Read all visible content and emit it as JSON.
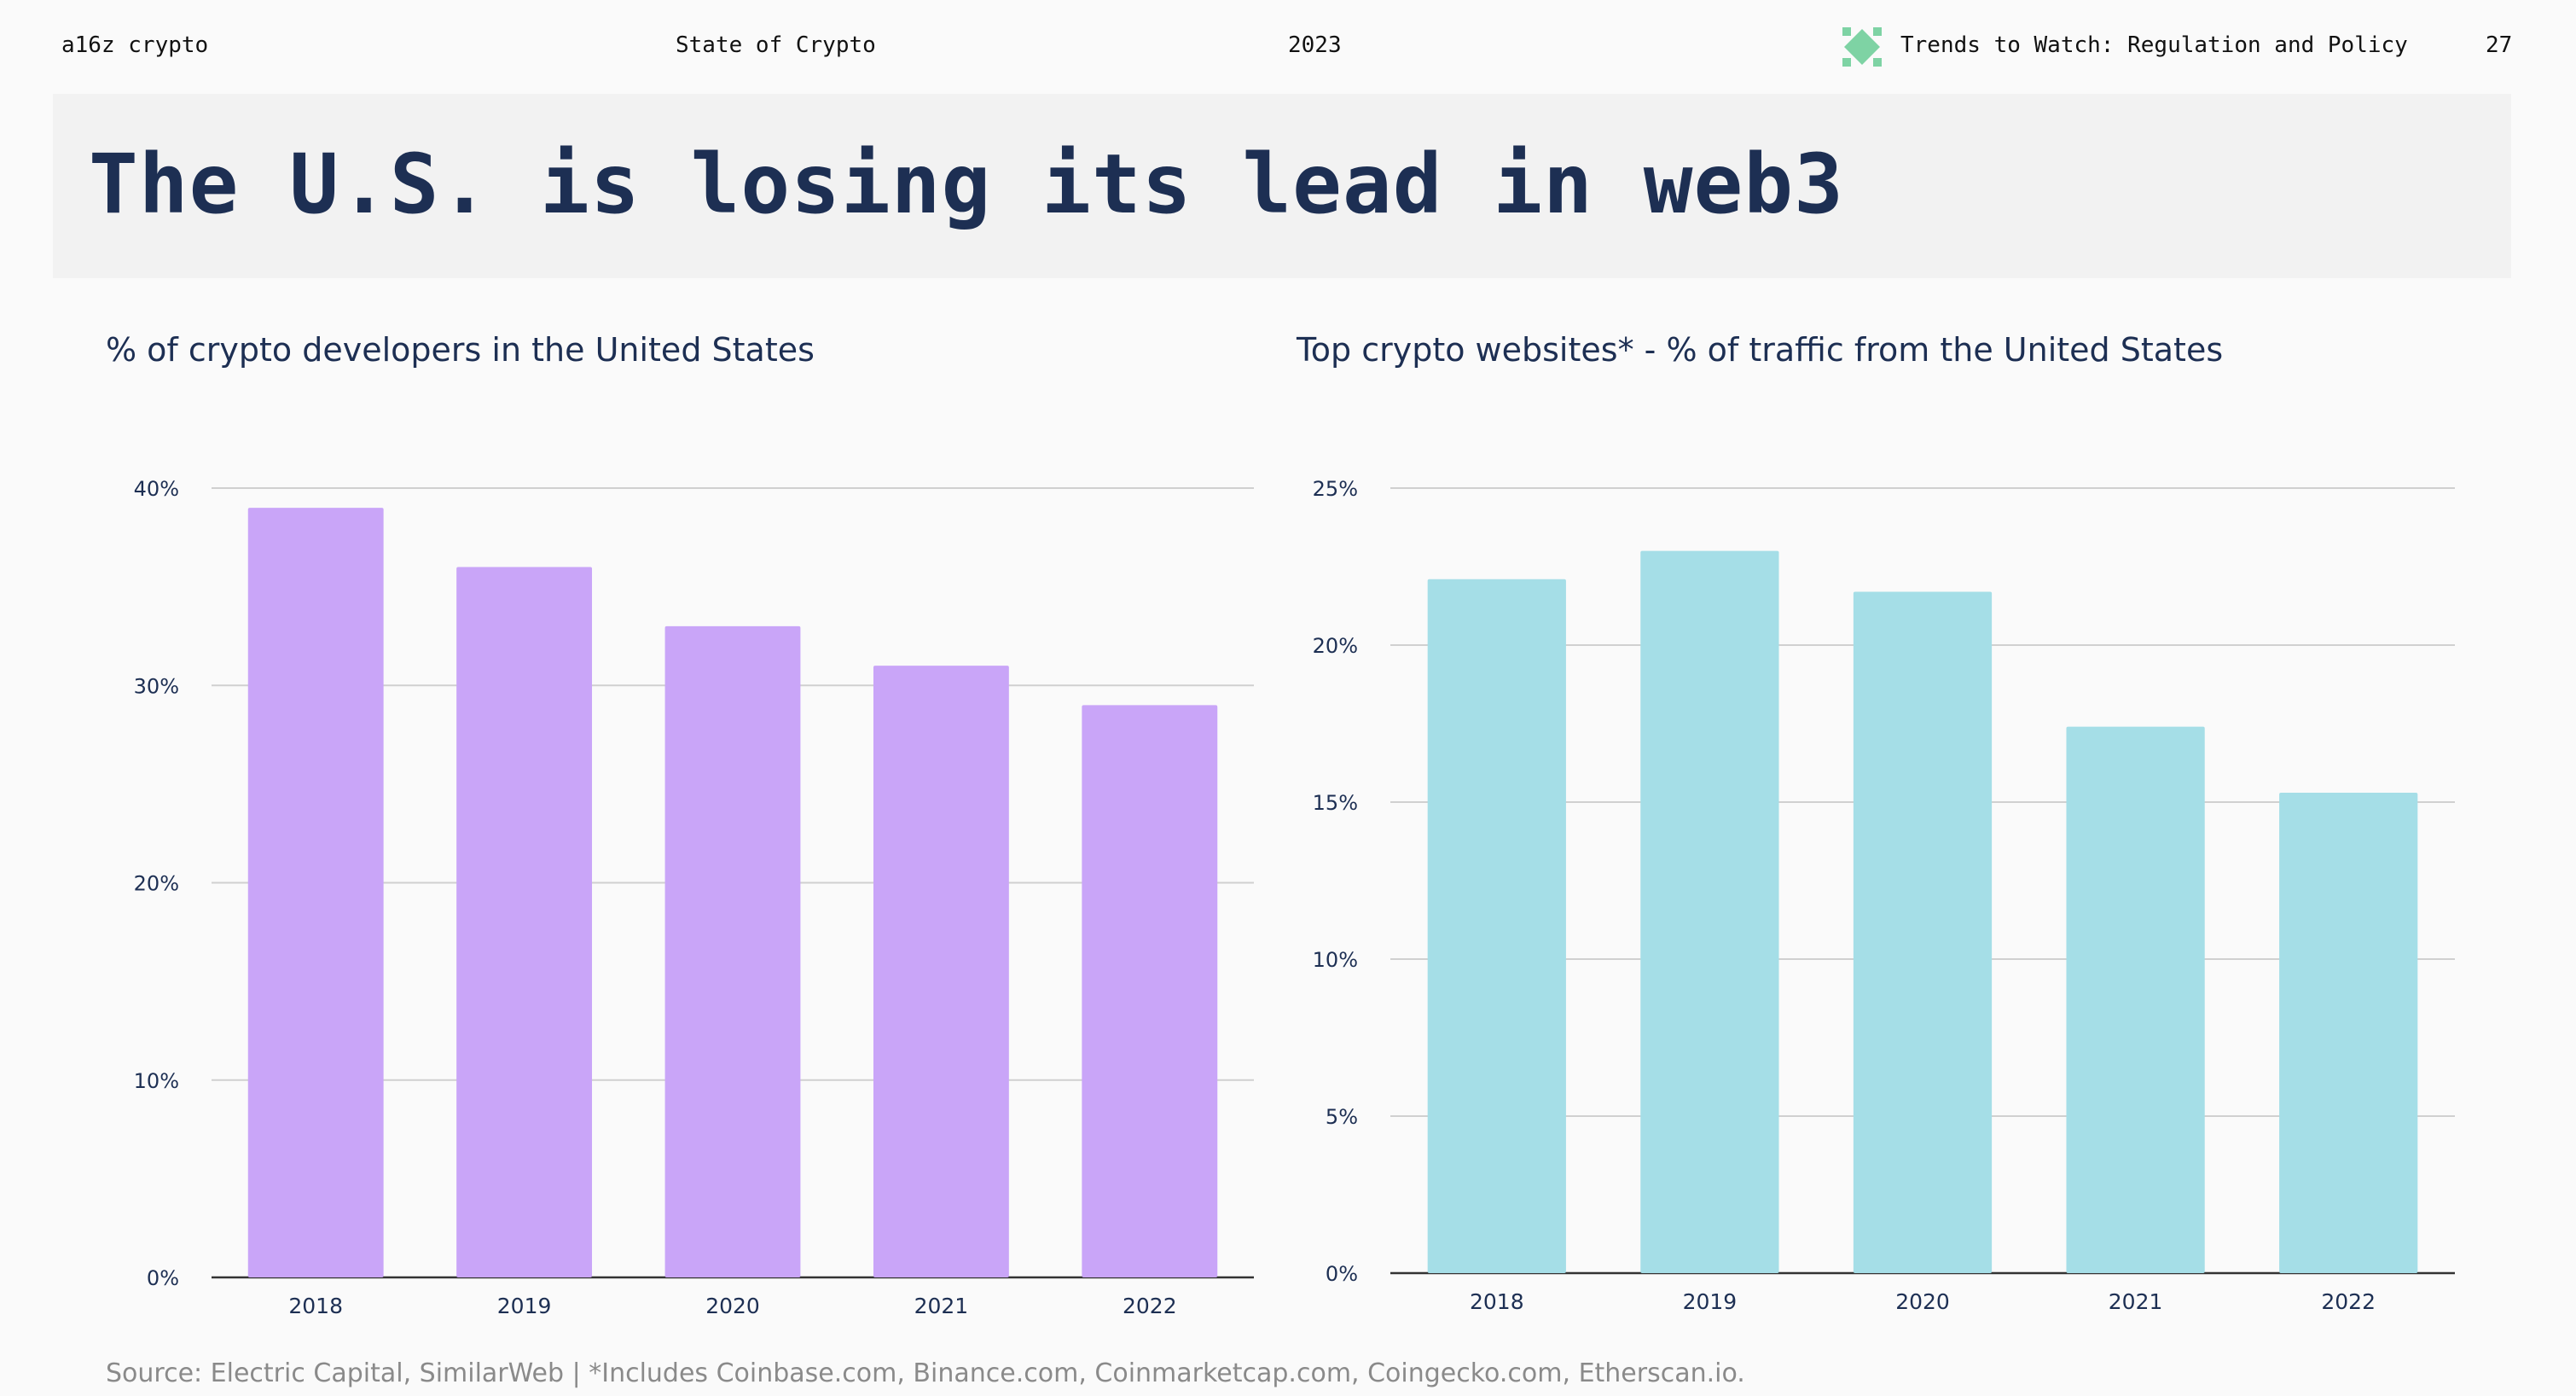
{
  "header": {
    "brand": "a16z crypto",
    "report": "State of Crypto",
    "year": "2023",
    "section": "Trends to Watch: Regulation and Policy",
    "page_number": "27",
    "accent_color": "#7ed3a4",
    "section_icon": "diamond-logo-icon"
  },
  "title": "The U.S. is losing its lead in web3",
  "chart_data": [
    {
      "type": "bar",
      "title": "% of crypto developers in the United States",
      "categories": [
        "2018",
        "2019",
        "2020",
        "2021",
        "2022"
      ],
      "values": [
        39,
        36,
        33,
        31,
        29
      ],
      "unit": "%",
      "ylim": [
        0,
        40
      ],
      "yticks": [
        0,
        10,
        20,
        30,
        40
      ],
      "ytick_labels": [
        "0%",
        "10%",
        "20%",
        "30%",
        "40%"
      ],
      "grid": true,
      "color": "#c9a5f8"
    },
    {
      "type": "bar",
      "title": "Top crypto websites* - % of traffic from the United States",
      "categories": [
        "2018",
        "2019",
        "2020",
        "2021",
        "2022"
      ],
      "values": [
        22.1,
        23.0,
        21.7,
        17.4,
        15.3
      ],
      "unit": "%",
      "ylim": [
        0,
        25
      ],
      "yticks": [
        0,
        5,
        10,
        15,
        20,
        25
      ],
      "ytick_labels": [
        "0%",
        "5%",
        "10%",
        "15%",
        "20%",
        "25%"
      ],
      "grid": true,
      "color": "#a5dee7"
    }
  ],
  "source": "Source: Electric Capital, SimilarWeb | *Includes Coinbase.com, Binance.com, Coinmarketcap.com, Coingecko.com, Etherscan.io."
}
